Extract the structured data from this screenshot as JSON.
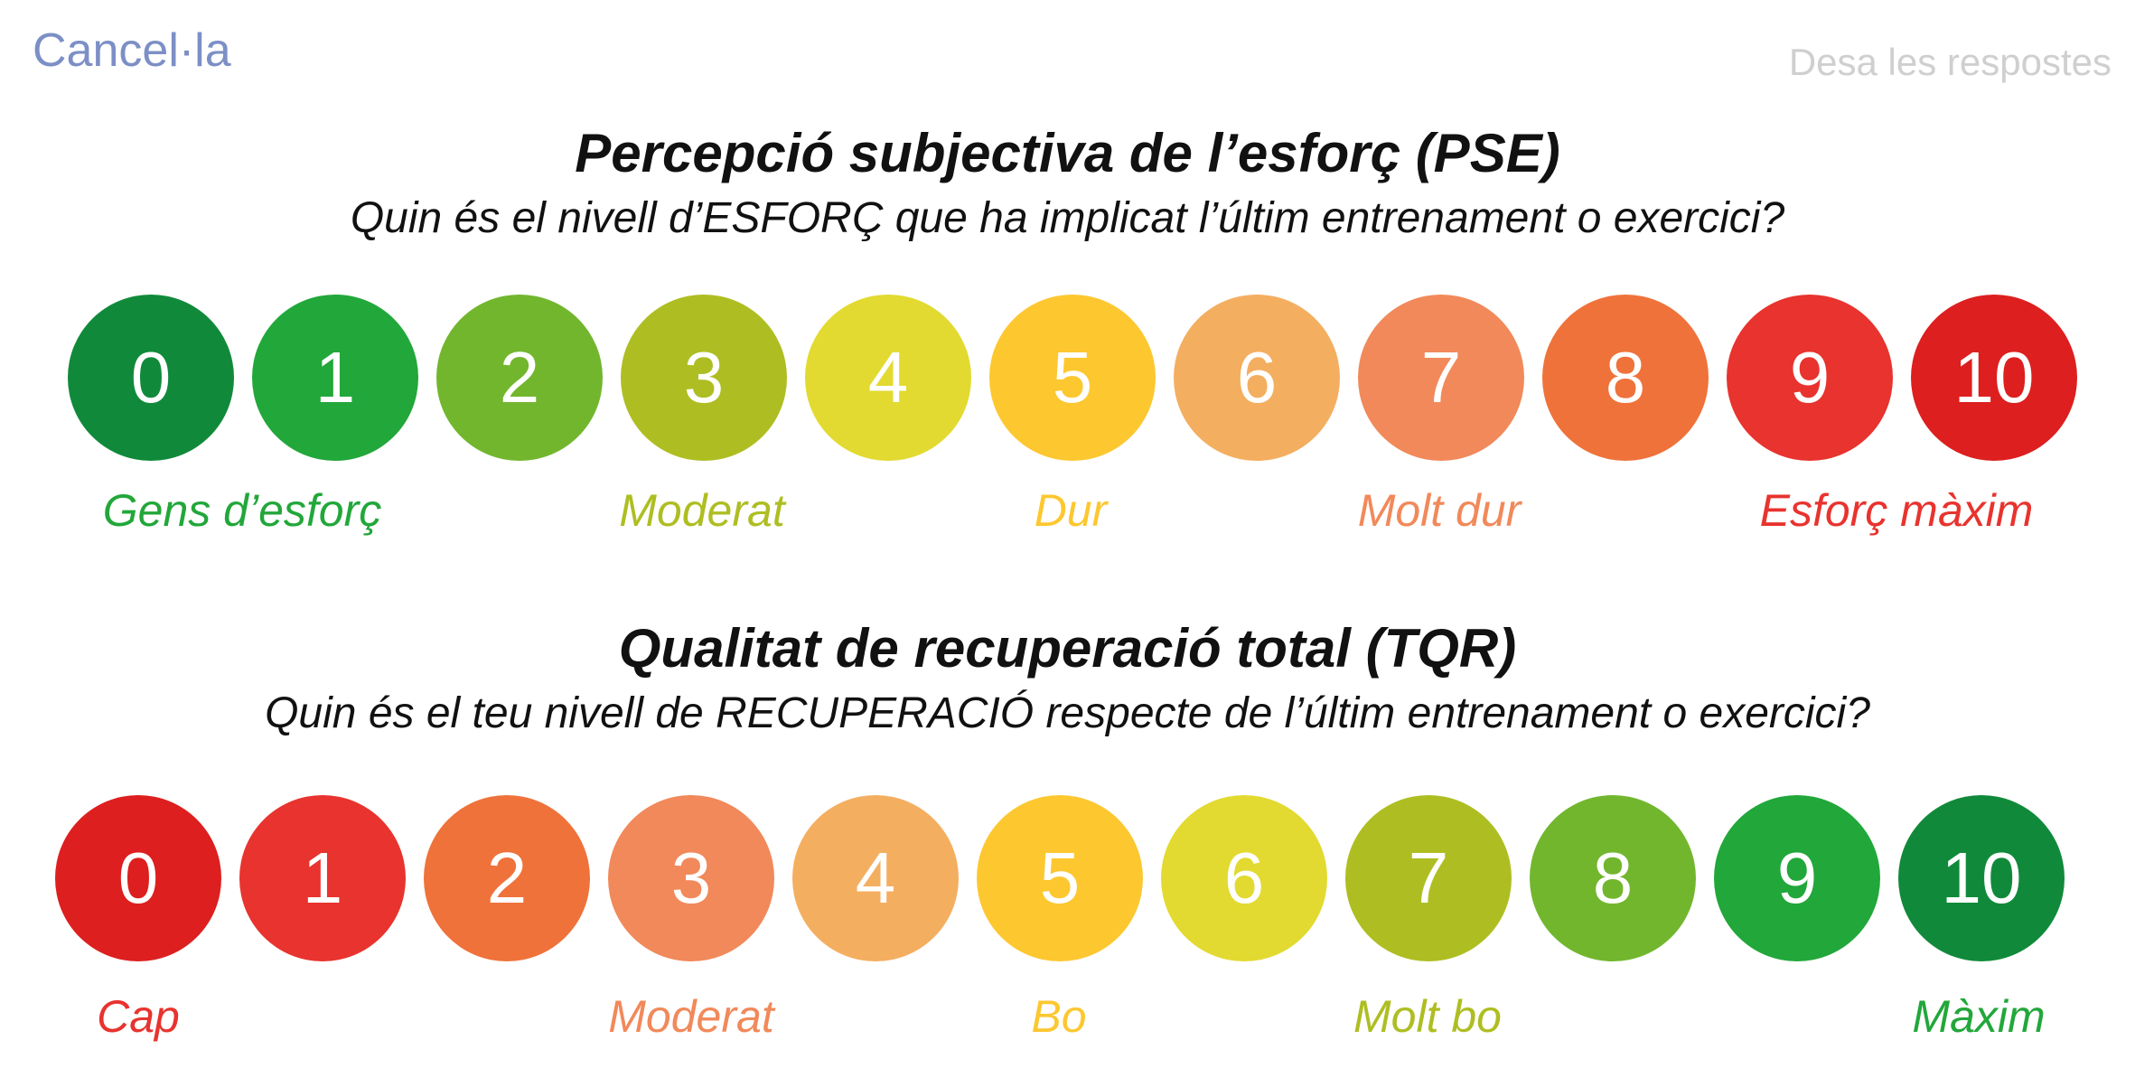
{
  "header": {
    "cancel_label": "Cancel·la",
    "save_label": "Desa les respostes",
    "cancel_color": "#7c8fc6",
    "save_color": "#cfcfcf"
  },
  "pse": {
    "title": "Percepció subjectiva de l’esforç (PSE)",
    "question": "Quin és el nivell d’ESFORÇ que ha implicat l’últim entrenament o exercici?",
    "options": [
      {
        "value": "0",
        "color": "#108a3a"
      },
      {
        "value": "1",
        "color": "#22a73a"
      },
      {
        "value": "2",
        "color": "#72b62e"
      },
      {
        "value": "3",
        "color": "#aebe22"
      },
      {
        "value": "4",
        "color": "#e2da30"
      },
      {
        "value": "5",
        "color": "#fdc730"
      },
      {
        "value": "6",
        "color": "#f4ae60"
      },
      {
        "value": "7",
        "color": "#f1895a"
      },
      {
        "value": "8",
        "color": "#ef723a"
      },
      {
        "value": "9",
        "color": "#e8332e"
      },
      {
        "value": "10",
        "color": "#dd1f1f"
      }
    ],
    "labels": [
      {
        "text": "Gens d’esforç",
        "color": "#22a73a"
      },
      {
        "text": "Moderat",
        "color": "#aebe22"
      },
      {
        "text": "Dur",
        "color": "#fdc730"
      },
      {
        "text": "Molt dur",
        "color": "#f1895a"
      },
      {
        "text": "Esforç màxim",
        "color": "#e8332e"
      }
    ]
  },
  "tqr": {
    "title": "Qualitat de recuperació total (TQR)",
    "question": "Quin és el teu nivell de RECUPERACIÓ respecte de l’últim entrenament o exercici?",
    "options": [
      {
        "value": "0",
        "color": "#dd1f1f"
      },
      {
        "value": "1",
        "color": "#e8332e"
      },
      {
        "value": "2",
        "color": "#ef723a"
      },
      {
        "value": "3",
        "color": "#f1895a"
      },
      {
        "value": "4",
        "color": "#f4ae60"
      },
      {
        "value": "5",
        "color": "#fdc730"
      },
      {
        "value": "6",
        "color": "#e2da30"
      },
      {
        "value": "7",
        "color": "#aebe22"
      },
      {
        "value": "8",
        "color": "#72b62e"
      },
      {
        "value": "9",
        "color": "#22a73a"
      },
      {
        "value": "10",
        "color": "#108a3a"
      }
    ],
    "labels": [
      {
        "text": "Cap",
        "color": "#e8332e"
      },
      {
        "text": "Moderat",
        "color": "#f1895a"
      },
      {
        "text": "Bo",
        "color": "#fdc730"
      },
      {
        "text": "Molt bo",
        "color": "#aebe22"
      },
      {
        "text": "Màxim",
        "color": "#22a73a"
      }
    ]
  }
}
